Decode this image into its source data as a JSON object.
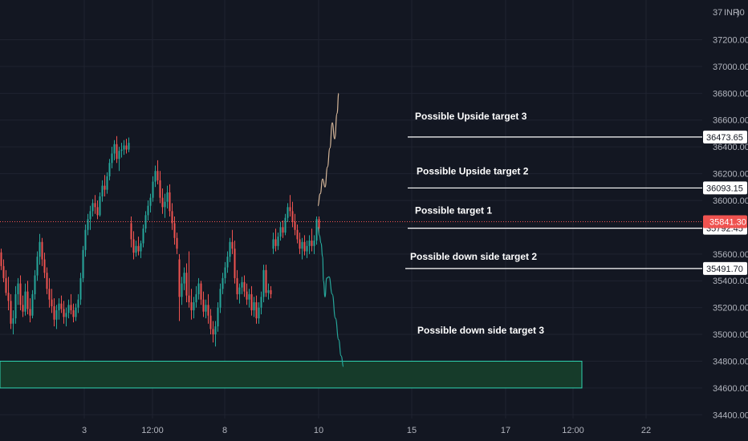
{
  "chart_data": {
    "type": "candlestick",
    "currency_label": "INR",
    "y_axis_top_partial": "37",
    "y_axis_top_partial_suffix": ")0",
    "ylim": [
      34380,
      37440
    ],
    "y_ticks": [
      "34400.00",
      "34600.00",
      "34800.00",
      "35000.00",
      "35200.00",
      "35400.00",
      "35600.00",
      "35800.00",
      "36000.00",
      "36200.00",
      "36400.00",
      "36600.00",
      "36800.00",
      "37000.00",
      "37200.00"
    ],
    "x_ticks": [
      {
        "label": "3",
        "t": 105
      },
      {
        "label": "12:00",
        "t": 190
      },
      {
        "label": "8",
        "t": 280
      },
      {
        "label": "10",
        "t": 397
      },
      {
        "label": "15",
        "t": 513
      },
      {
        "label": "17",
        "t": 630
      },
      {
        "label": "12:00",
        "t": 714
      },
      {
        "label": "22",
        "t": 805
      }
    ],
    "grid": true,
    "last_price": 35841.3,
    "last_price_label": "35841.30",
    "candles": [
      [
        0,
        35612,
        35640,
        35480,
        35510
      ],
      [
        3,
        35510,
        35560,
        35390,
        35420
      ],
      [
        6,
        35420,
        35480,
        35290,
        35310
      ],
      [
        9,
        35310,
        35430,
        35180,
        35250
      ],
      [
        12,
        35250,
        35300,
        35040,
        35080
      ],
      [
        15,
        35080,
        35180,
        35000,
        35120
      ],
      [
        18,
        35120,
        35360,
        35080,
        35300
      ],
      [
        21,
        35300,
        35420,
        35220,
        35380
      ],
      [
        24,
        35380,
        35440,
        35180,
        35220
      ],
      [
        27,
        35220,
        35290,
        35130,
        35170
      ],
      [
        30,
        35170,
        35380,
        35140,
        35320
      ],
      [
        33,
        35320,
        35400,
        35150,
        35190
      ],
      [
        36,
        35190,
        35270,
        35090,
        35140
      ],
      [
        39,
        35140,
        35330,
        35120,
        35300
      ],
      [
        42,
        35300,
        35480,
        35260,
        35440
      ],
      [
        45,
        35440,
        35620,
        35400,
        35580
      ],
      [
        48,
        35580,
        35750,
        35520,
        35690
      ],
      [
        51,
        35690,
        35720,
        35510,
        35560
      ],
      [
        54,
        35560,
        35610,
        35420,
        35460
      ],
      [
        57,
        35460,
        35500,
        35300,
        35340
      ],
      [
        60,
        35340,
        35420,
        35200,
        35260
      ],
      [
        63,
        35260,
        35340,
        35160,
        35210
      ],
      [
        66,
        35210,
        35270,
        35060,
        35110
      ],
      [
        69,
        35110,
        35220,
        35040,
        35180
      ],
      [
        72,
        35180,
        35270,
        35110,
        35230
      ],
      [
        75,
        35230,
        35290,
        35160,
        35190
      ],
      [
        78,
        35190,
        35250,
        35080,
        35130
      ],
      [
        81,
        35130,
        35200,
        35060,
        35160
      ],
      [
        84,
        35160,
        35260,
        35120,
        35220
      ],
      [
        87,
        35220,
        35300,
        35150,
        35180
      ],
      [
        90,
        35180,
        35230,
        35090,
        35130
      ],
      [
        93,
        35130,
        35230,
        35100,
        35200
      ],
      [
        96,
        35200,
        35300,
        35160,
        35260
      ],
      [
        99,
        35260,
        35460,
        35220,
        35420
      ],
      [
        102,
        35420,
        35660,
        35390,
        35630
      ],
      [
        105,
        35630,
        35820,
        35580,
        35780
      ],
      [
        108,
        35780,
        35900,
        35740,
        35860
      ],
      [
        111,
        35860,
        35960,
        35780,
        35920
      ],
      [
        114,
        35920,
        36010,
        35880,
        35980
      ],
      [
        117,
        35980,
        36040,
        35900,
        35950
      ],
      [
        120,
        35950,
        36000,
        35860,
        35890
      ],
      [
        123,
        35890,
        36060,
        35880,
        36030
      ],
      [
        126,
        36030,
        36150,
        35990,
        36110
      ],
      [
        129,
        36110,
        36190,
        36030,
        36080
      ],
      [
        132,
        36080,
        36210,
        36050,
        36180
      ],
      [
        135,
        36180,
        36310,
        36150,
        36280
      ],
      [
        138,
        36280,
        36400,
        36240,
        36350
      ],
      [
        141,
        36350,
        36450,
        36300,
        36420
      ],
      [
        144,
        36420,
        36480,
        36280,
        36310
      ],
      [
        147,
        36310,
        36400,
        36220,
        36370
      ],
      [
        150,
        36370,
        36430,
        36320,
        36380
      ],
      [
        153,
        36380,
        36450,
        36340,
        36410
      ],
      [
        156,
        36410,
        36460,
        36350,
        36380
      ],
      [
        159,
        36380,
        36470,
        36360,
        36430
      ],
      [
        162,
        35830,
        35880,
        35650,
        35710
      ],
      [
        165,
        35710,
        35770,
        35560,
        35610
      ],
      [
        168,
        35610,
        35700,
        35580,
        35660
      ],
      [
        171,
        35660,
        35730,
        35590,
        35620
      ],
      [
        174,
        35620,
        35700,
        35570,
        35680
      ],
      [
        177,
        35680,
        35820,
        35650,
        35790
      ],
      [
        180,
        35790,
        35920,
        35760,
        35890
      ],
      [
        183,
        35890,
        36000,
        35850,
        35960
      ],
      [
        186,
        35960,
        36050,
        35910,
        36020
      ],
      [
        189,
        36020,
        36180,
        35990,
        36140
      ],
      [
        192,
        36140,
        36260,
        36100,
        36220
      ],
      [
        195,
        36220,
        36300,
        36120,
        36150
      ],
      [
        198,
        36150,
        36220,
        35980,
        36020
      ],
      [
        201,
        36020,
        36090,
        35900,
        35950
      ],
      [
        204,
        35950,
        36050,
        35870,
        35990
      ],
      [
        207,
        35990,
        36110,
        35940,
        36060
      ],
      [
        210,
        36060,
        36120,
        35880,
        35920
      ],
      [
        213,
        35920,
        35980,
        35780,
        35830
      ],
      [
        216,
        35830,
        35880,
        35670,
        35720
      ],
      [
        219,
        35720,
        35760,
        35600,
        35640
      ],
      [
        222,
        35560,
        35600,
        35100,
        35280
      ],
      [
        225,
        35280,
        35430,
        35220,
        35380
      ],
      [
        228,
        35380,
        35500,
        35330,
        35460
      ],
      [
        231,
        35460,
        35530,
        35240,
        35290
      ],
      [
        234,
        35290,
        35620,
        35200,
        35240
      ],
      [
        237,
        35240,
        35340,
        35110,
        35180
      ],
      [
        240,
        35180,
        35280,
        35120,
        35240
      ],
      [
        243,
        35240,
        35360,
        35200,
        35300
      ],
      [
        246,
        35300,
        35420,
        35260,
        35380
      ],
      [
        249,
        35380,
        35400,
        35220,
        35260
      ],
      [
        252,
        35260,
        35320,
        35130,
        35170
      ],
      [
        255,
        35170,
        35260,
        35120,
        35220
      ],
      [
        258,
        35220,
        35300,
        35080,
        35140
      ],
      [
        261,
        35140,
        35190,
        35000,
        35040
      ],
      [
        264,
        35040,
        35100,
        34940,
        35000
      ],
      [
        267,
        35000,
        35100,
        34910,
        35060
      ],
      [
        270,
        35060,
        35240,
        35020,
        35200
      ],
      [
        273,
        35200,
        35380,
        35160,
        35340
      ],
      [
        276,
        35340,
        35460,
        35300,
        35420
      ],
      [
        279,
        35420,
        35540,
        35380,
        35500
      ],
      [
        282,
        35500,
        35620,
        35460,
        35580
      ],
      [
        285,
        35580,
        35720,
        35540,
        35690
      ],
      [
        288,
        35690,
        35780,
        35600,
        35640
      ],
      [
        291,
        35640,
        35700,
        35380,
        35420
      ],
      [
        294,
        35420,
        35480,
        35260,
        35300
      ],
      [
        297,
        35300,
        35380,
        35230,
        35350
      ],
      [
        300,
        35350,
        35430,
        35300,
        35390
      ],
      [
        303,
        35390,
        35440,
        35280,
        35320
      ],
      [
        306,
        35320,
        35380,
        35220,
        35260
      ],
      [
        309,
        35260,
        35340,
        35200,
        35300
      ],
      [
        312,
        35300,
        35360,
        35140,
        35180
      ],
      [
        315,
        35180,
        35280,
        35130,
        35240
      ],
      [
        318,
        35240,
        35290,
        35080,
        35120
      ],
      [
        321,
        35120,
        35240,
        35080,
        35200
      ],
      [
        324,
        35200,
        35320,
        35150,
        35280
      ],
      [
        327,
        35280,
        35520,
        35240,
        35480
      ],
      [
        330,
        35480,
        35520,
        35280,
        35310
      ],
      [
        333,
        35310,
        35380,
        35260,
        35330
      ],
      [
        336,
        35330,
        35360,
        35270,
        35300
      ],
      [
        339,
        35640,
        35760,
        35600,
        35710
      ],
      [
        342,
        35710,
        35790,
        35620,
        35660
      ],
      [
        345,
        35660,
        35760,
        35630,
        35730
      ],
      [
        348,
        35730,
        35840,
        35700,
        35800
      ],
      [
        351,
        35800,
        35850,
        35720,
        35760
      ],
      [
        354,
        35760,
        35900,
        35740,
        35870
      ],
      [
        357,
        35870,
        35980,
        35840,
        35950
      ],
      [
        360,
        35950,
        36040,
        35880,
        35920
      ],
      [
        363,
        35920,
        35990,
        35800,
        35840
      ],
      [
        366,
        35840,
        35900,
        35740,
        35780
      ],
      [
        369,
        35780,
        35820,
        35680,
        35710
      ],
      [
        372,
        35710,
        35760,
        35600,
        35640
      ],
      [
        375,
        35640,
        35720,
        35560,
        35690
      ],
      [
        378,
        35690,
        35740,
        35590,
        35620
      ],
      [
        381,
        35620,
        35700,
        35570,
        35660
      ],
      [
        384,
        35660,
        35740,
        35600,
        35700
      ],
      [
        387,
        35700,
        35790,
        35620,
        35660
      ],
      [
        390,
        35660,
        35740,
        35600,
        35700
      ],
      [
        393,
        35700,
        35880,
        35670,
        35860
      ],
      [
        396,
        35860,
        35880,
        35740,
        35790
      ]
    ],
    "projection_up": [
      [
        396,
        35960
      ],
      [
        399,
        36050
      ],
      [
        402,
        36160
      ],
      [
        405,
        36100
      ],
      [
        408,
        36250
      ],
      [
        411,
        36390
      ],
      [
        414,
        36580
      ],
      [
        417,
        36460
      ],
      [
        420,
        36650
      ],
      [
        422,
        36800
      ]
    ],
    "projection_down": [
      [
        396,
        35800
      ],
      [
        398,
        35740
      ],
      [
        400,
        35680
      ],
      [
        402,
        35580
      ],
      [
        403,
        35400
      ],
      [
        405,
        35280
      ],
      [
        407,
        35420
      ],
      [
        410,
        35430
      ],
      [
        414,
        35300
      ],
      [
        418,
        35120
      ],
      [
        422,
        34960
      ],
      [
        425,
        34840
      ],
      [
        428,
        34760
      ]
    ],
    "demand_zone": {
      "y1": 34600,
      "y2": 34800,
      "t1": 0,
      "t2": 725
    },
    "target_lines": [
      {
        "label": "Possible Upside target 3",
        "value": 36473.65,
        "value_label": "36473.65",
        "t1": 508
      },
      {
        "label": "Possible Upside target 2",
        "value": 36093.15,
        "value_label": "36093.15",
        "t1": 508
      },
      {
        "label": "Possible target 1",
        "value": 35792.45,
        "value_label": "35792.45",
        "t1": 508
      },
      {
        "label": "Possible down side target 2",
        "value": 35491.7,
        "value_label": "35491.70",
        "t1": 505
      }
    ],
    "extra_annotation": {
      "label": "Possible down side target 3",
      "value": 35030
    }
  },
  "colors": {
    "background": "#131722",
    "grid": "#1f2330",
    "up": "#26a69a",
    "down": "#ef5350",
    "text": "#b2b5be",
    "zone_fill": "#163b2a",
    "zone_stroke": "#2fd3b0",
    "proj_up": "#d7b89a",
    "proj_down": "#26a69a",
    "price_line": "#ef5350"
  }
}
